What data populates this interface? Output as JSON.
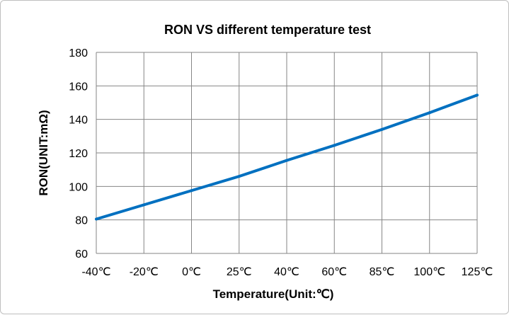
{
  "chart_data": {
    "type": "line",
    "title": "RON VS different temperature test",
    "xlabel": "Temperature(Unit:℃)",
    "ylabel": "RON(UNIT:mΩ)",
    "categories": [
      "-40℃",
      "-20℃",
      "0℃",
      "25℃",
      "40℃",
      "60℃",
      "85℃",
      "100℃",
      "125℃"
    ],
    "series": [
      {
        "values": [
          80.5,
          89,
          97.5,
          106,
          115.5,
          124.5,
          134,
          144,
          154.5
        ],
        "color": "#0070c0"
      }
    ],
    "ylim": [
      60,
      180
    ],
    "yticks": [
      60,
      80,
      100,
      120,
      140,
      160,
      180
    ],
    "grid": true,
    "legend": "none"
  }
}
